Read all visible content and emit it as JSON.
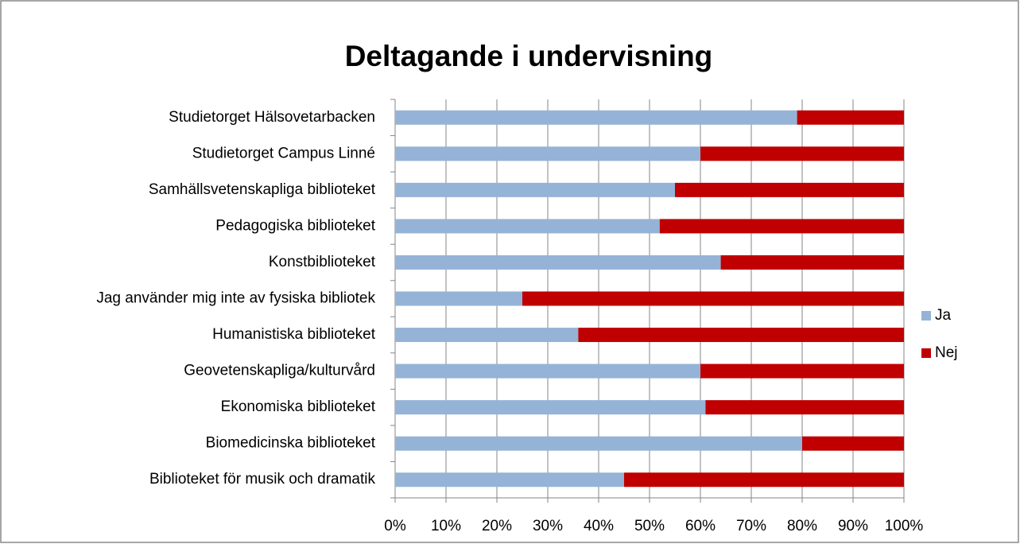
{
  "chart_data": {
    "type": "stacked_bar_horizontal",
    "title": "Deltagande i undervisning",
    "categories": [
      "Studietorget Hälsovetarbacken",
      "Studietorget Campus Linné",
      "Samhällsvetenskapliga biblioteket",
      "Pedagogiska biblioteket",
      "Konstbiblioteket",
      "Jag använder mig inte av fysiska bibliotek",
      "Humanistiska biblioteket",
      "Geovetenskapliga/kulturvård",
      "Ekonomiska biblioteket",
      "Biomedicinska biblioteket",
      "Biblioteket för musik och dramatik"
    ],
    "series": [
      {
        "name": "Ja",
        "color": "#95b3d7",
        "values": [
          79,
          60,
          55,
          52,
          64,
          25,
          36,
          60,
          61,
          80,
          45
        ]
      },
      {
        "name": "Nej",
        "color": "#c00000",
        "values": [
          21,
          40,
          45,
          48,
          36,
          75,
          64,
          40,
          39,
          20,
          55
        ]
      }
    ],
    "xlim": [
      0,
      100
    ],
    "xticks": [
      {
        "value": 0,
        "label": "0%"
      },
      {
        "value": 10,
        "label": "10%"
      },
      {
        "value": 20,
        "label": "20%"
      },
      {
        "value": 30,
        "label": "30%"
      },
      {
        "value": 40,
        "label": "40%"
      },
      {
        "value": 50,
        "label": "50%"
      },
      {
        "value": 60,
        "label": "60%"
      },
      {
        "value": 70,
        "label": "70%"
      },
      {
        "value": 80,
        "label": "80%"
      },
      {
        "value": 90,
        "label": "90%"
      },
      {
        "value": 100,
        "label": "100%"
      }
    ],
    "grid": true,
    "legend": "right"
  }
}
